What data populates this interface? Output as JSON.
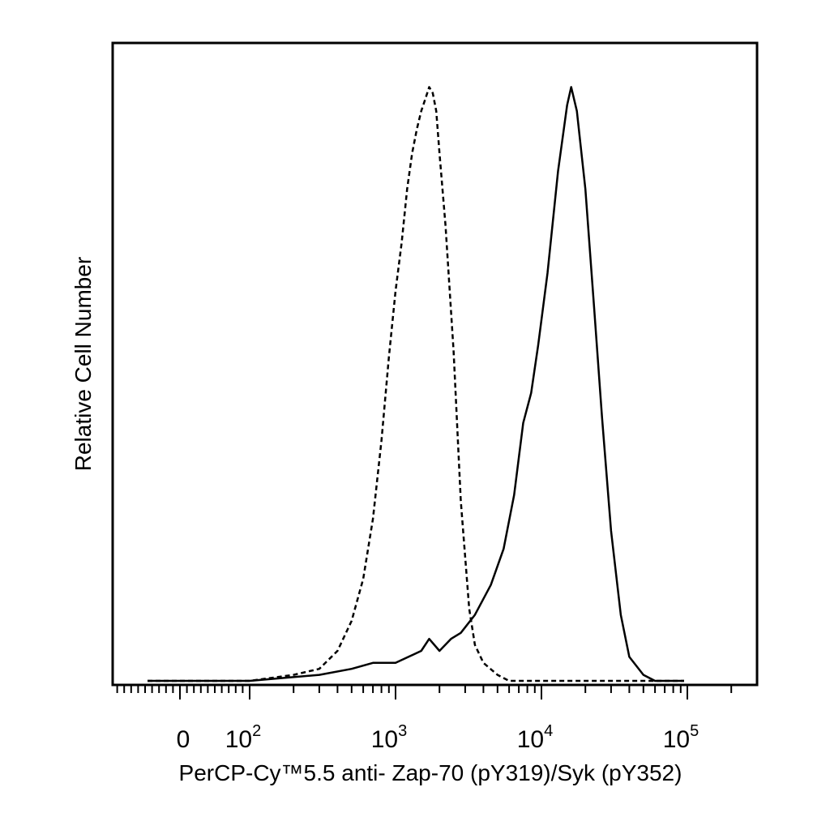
{
  "chart_data": {
    "type": "line",
    "title": "",
    "xlabel": "PerCP-Cy™5.5 anti- Zap-70 (pY319)/Syk (pY352)",
    "ylabel": "Relative Cell Number",
    "x_scale": "biexponential (log above 10^2)",
    "xlim": [
      -1000,
      250000
    ],
    "ylim": [
      0,
      1.0
    ],
    "grid": false,
    "legend": "none",
    "x_ticks": [
      {
        "value": 0,
        "base": "0",
        "exp": ""
      },
      {
        "value": 100,
        "base": "10",
        "exp": "2"
      },
      {
        "value": 1000,
        "base": "10",
        "exp": "3"
      },
      {
        "value": 10000,
        "base": "10",
        "exp": "4"
      },
      {
        "value": 100000,
        "base": "10",
        "exp": "5"
      }
    ],
    "series": [
      {
        "style": "dashed",
        "x": [
          100,
          200,
          300,
          400,
          500,
          600,
          700,
          800,
          900,
          1000,
          1100,
          1200,
          1300,
          1400,
          1500,
          1600,
          1700,
          1800,
          1900,
          2000,
          2200,
          2500,
          2800,
          3200,
          3500,
          4000,
          5000,
          6000
        ],
        "y": [
          0.0,
          0.01,
          0.02,
          0.05,
          0.1,
          0.17,
          0.27,
          0.4,
          0.54,
          0.65,
          0.73,
          0.82,
          0.88,
          0.92,
          0.95,
          0.97,
          0.99,
          0.98,
          0.95,
          0.88,
          0.76,
          0.55,
          0.3,
          0.12,
          0.06,
          0.03,
          0.01,
          0.0
        ]
      },
      {
        "style": "solid",
        "x": [
          100,
          300,
          500,
          700,
          1000,
          1500,
          1700,
          2000,
          2400,
          2800,
          3500,
          4500,
          5500,
          6500,
          7500,
          8500,
          9500,
          11000,
          13000,
          15000,
          16000,
          17500,
          20000,
          23000,
          26000,
          30000,
          35000,
          40000,
          50000,
          60000
        ],
        "y": [
          0.0,
          0.01,
          0.02,
          0.03,
          0.03,
          0.05,
          0.07,
          0.05,
          0.07,
          0.08,
          0.11,
          0.16,
          0.22,
          0.31,
          0.43,
          0.48,
          0.56,
          0.68,
          0.85,
          0.96,
          0.99,
          0.95,
          0.82,
          0.62,
          0.44,
          0.25,
          0.11,
          0.04,
          0.01,
          0.0
        ]
      }
    ]
  }
}
